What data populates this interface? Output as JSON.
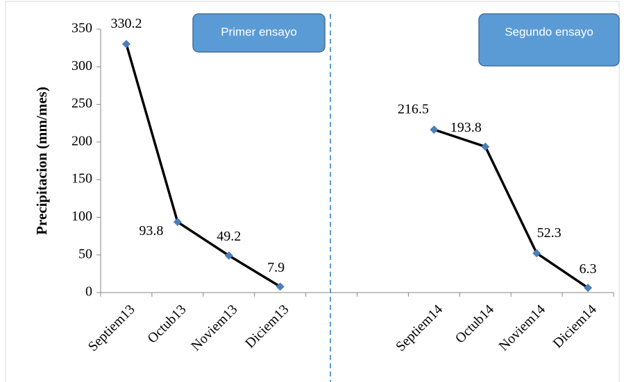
{
  "chart_data": {
    "type": "line",
    "y_label": "Precipitacion (mm/mes)",
    "categories": [
      "Septiem13",
      "Octub13",
      "Noviem13",
      "Diciem13",
      null,
      null,
      "Septiem14",
      "Octub14",
      "Noviem14",
      "Diciem14"
    ],
    "series": [
      {
        "name": "Precipitacion",
        "color": "#000000",
        "marker_color": "#4a7ebb",
        "values": [
          330.2,
          93.8,
          49.2,
          7.9,
          null,
          null,
          216.5,
          193.8,
          52.3,
          6.3
        ]
      }
    ],
    "ylim": [
      0,
      350
    ],
    "yticks": [
      0,
      50,
      100,
      150,
      200,
      250,
      300,
      350
    ],
    "annotations": [
      "Primer ensayo",
      "Segundo ensayo"
    ]
  }
}
